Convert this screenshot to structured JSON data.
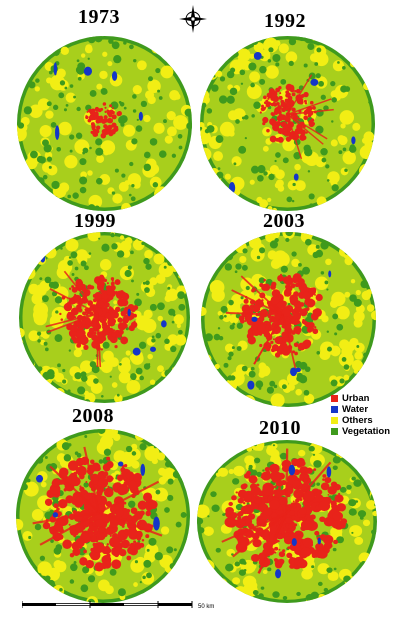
{
  "colors": {
    "urban": "#e8231a",
    "water": "#1436c8",
    "others": "#f2ee14",
    "vegetation": "#3f9a1d",
    "light_green": "#a8cf1c"
  },
  "compass": {
    "icon": "north-arrow-compass-rose"
  },
  "maps": [
    {
      "year": "1973",
      "urban_level": 0.06,
      "others_level": 0.35
    },
    {
      "year": "1992",
      "urban_level": 0.22,
      "others_level": 0.45
    },
    {
      "year": "1999",
      "urban_level": 0.38,
      "others_level": 0.55
    },
    {
      "year": "2003",
      "urban_level": 0.42,
      "others_level": 0.5
    },
    {
      "year": "2008",
      "urban_level": 0.62,
      "others_level": 0.45
    },
    {
      "year": "2010",
      "urban_level": 0.66,
      "others_level": 0.45
    }
  ],
  "legend": {
    "items": [
      {
        "label": "Urban",
        "color": "#e8231a"
      },
      {
        "label": "Water",
        "color": "#1436c8"
      },
      {
        "label": "Others",
        "color": "#f2ee14"
      },
      {
        "label": "Vegetation",
        "color": "#3f9a1d"
      }
    ]
  },
  "scale_bar": {
    "label": "50 km"
  }
}
